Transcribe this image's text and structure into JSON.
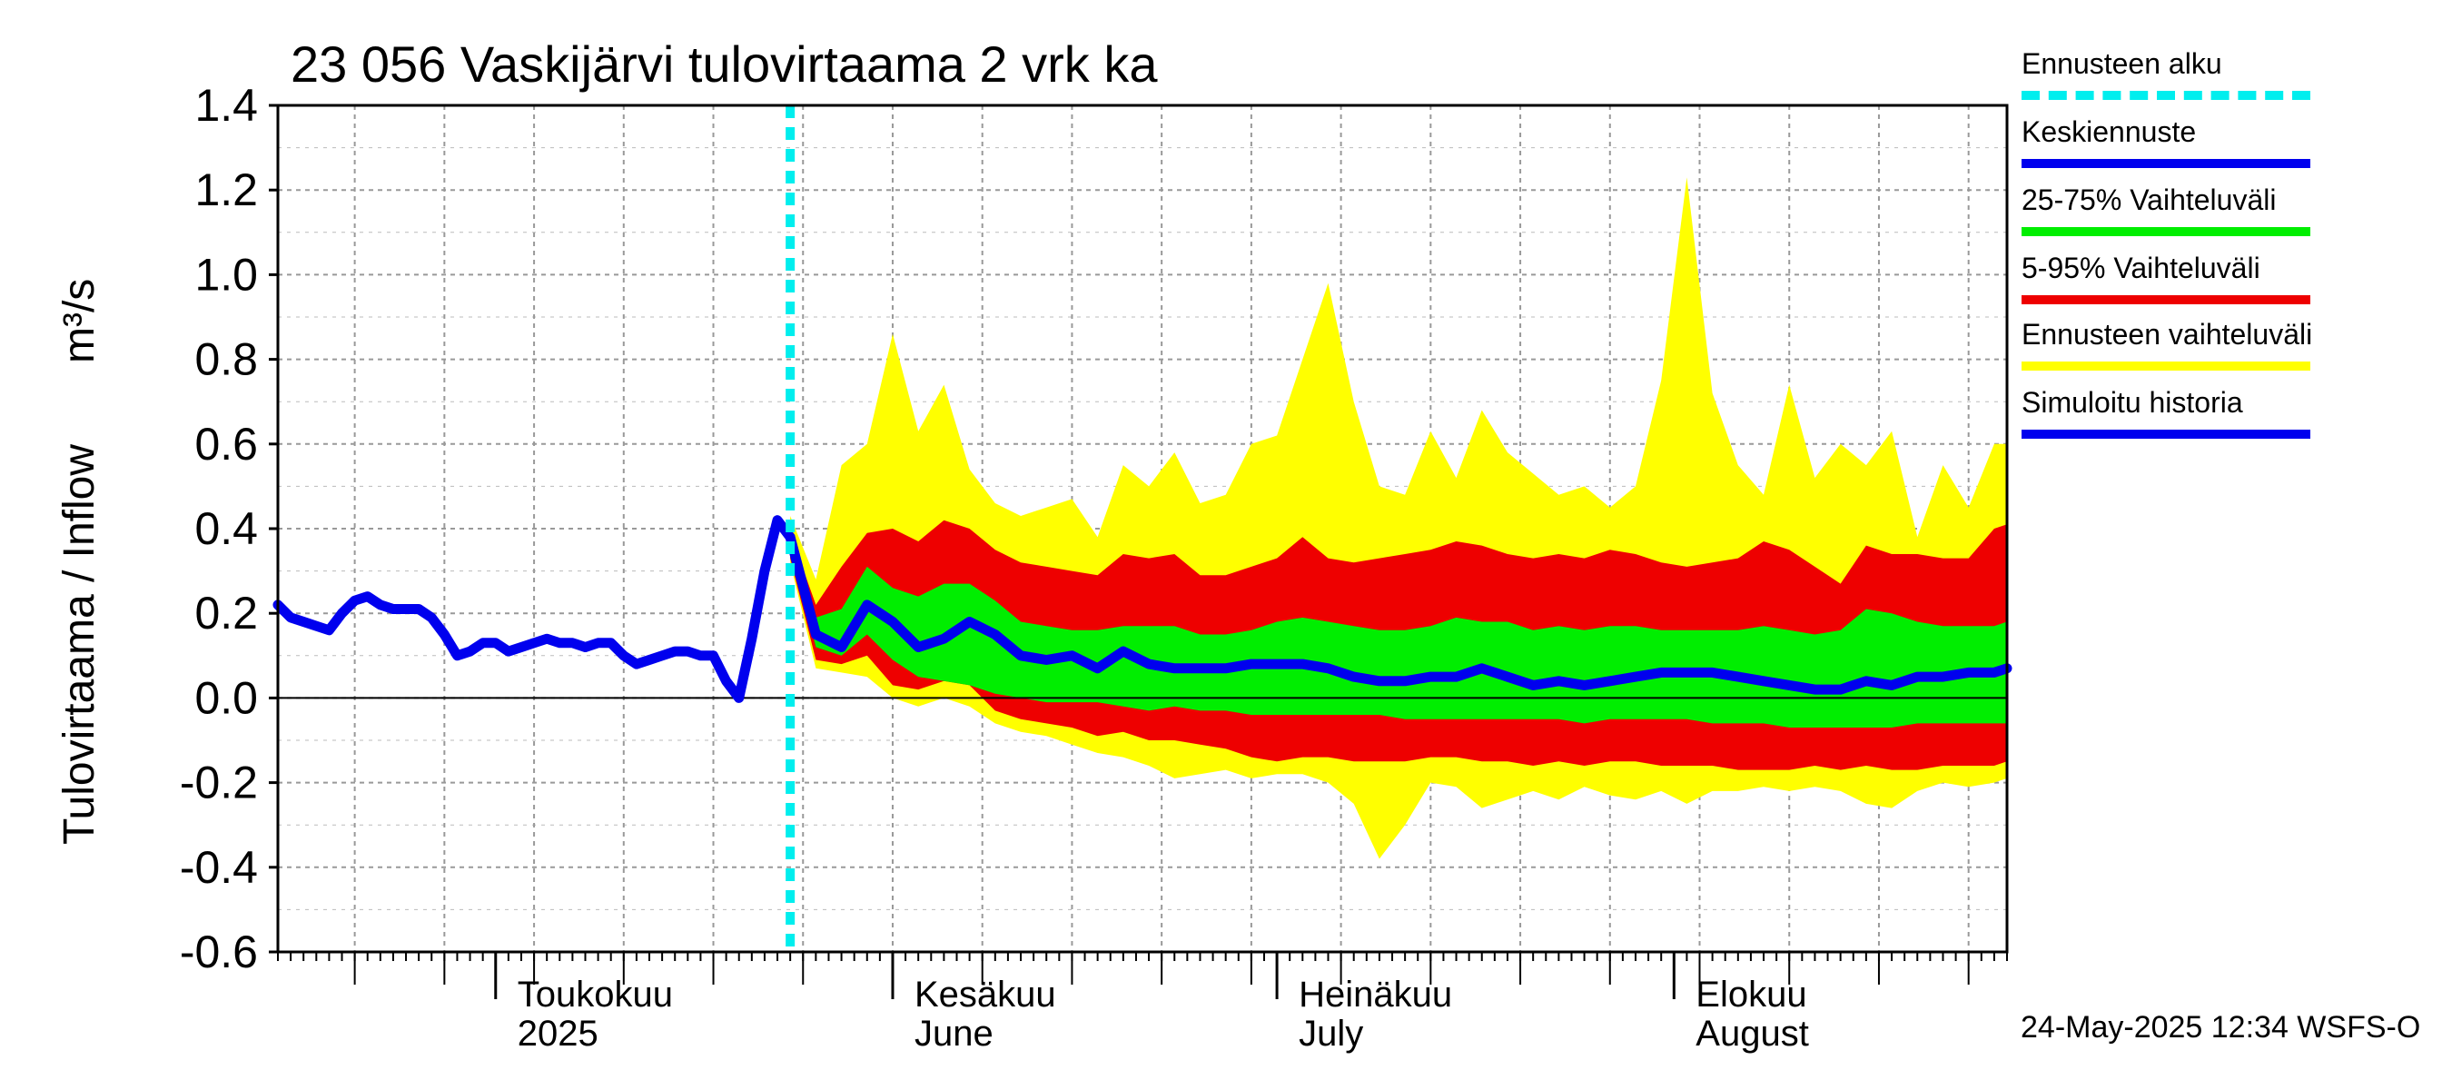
{
  "title": "23 056 Vaskijärvi tulovirtaama 2 vrk ka",
  "ylabel": "Tulovirtaama / Inflow",
  "yunit": "m³/s",
  "timestamp": "24-May-2025 12:34 WSFS-O",
  "colors": {
    "forecast_start": "#00eeee",
    "median": "#0000ee",
    "iqr": "#00ee00",
    "p5_95": "#ee0000",
    "range": "#ffff00",
    "history": "#0000ee"
  },
  "legend": [
    {
      "label": "Ennusteen alku",
      "color": "#00eeee",
      "style": "dashed"
    },
    {
      "label": "Keskiennuste",
      "color": "#0000ee",
      "style": "solid"
    },
    {
      "label": "25-75% Vaihteluväli",
      "color": "#00ee00",
      "style": "solid"
    },
    {
      "label": "5-95% Vaihteluväli",
      "color": "#ee0000",
      "style": "solid"
    },
    {
      "label": "Ennusteen vaihteluväli",
      "color": "#ffff00",
      "style": "solid"
    },
    {
      "label": "Simuloitu historia",
      "color": "#0000ee",
      "style": "solid"
    }
  ],
  "chart_data": {
    "type": "area",
    "title": "23 056 Vaskijärvi tulovirtaama 2 vrk ka",
    "ylabel": "Tulovirtaama / Inflow   m³/s",
    "ylim": [
      -0.6,
      1.4
    ],
    "yticks": [
      "1.4",
      "1.2",
      "1.0",
      "0.8",
      "0.6",
      "0.4",
      "0.2",
      "0.0",
      "-0.2",
      "-0.4",
      "-0.6"
    ],
    "xlim": [
      "2025-04-14",
      "2025-08-27"
    ],
    "grid": true,
    "legend_position": "right",
    "forecast_start": "2025-05-24",
    "month_ticks": [
      {
        "date": "2025-05-01",
        "label1": "Toukokuu",
        "label2": "2025"
      },
      {
        "date": "2025-06-01",
        "label1": "Kesäkuu",
        "label2": "June"
      },
      {
        "date": "2025-07-01",
        "label1": "Heinäkuu",
        "label2": "July"
      },
      {
        "date": "2025-08-01",
        "label1": "Elokuu",
        "label2": "August"
      }
    ],
    "history": {
      "name": "Simuloitu historia",
      "x": [
        "2025-04-14",
        "2025-04-15",
        "2025-04-16",
        "2025-04-17",
        "2025-04-18",
        "2025-04-19",
        "2025-04-20",
        "2025-04-21",
        "2025-04-22",
        "2025-04-23",
        "2025-04-24",
        "2025-04-25",
        "2025-04-26",
        "2025-04-27",
        "2025-04-28",
        "2025-04-29",
        "2025-04-30",
        "2025-05-01",
        "2025-05-02",
        "2025-05-03",
        "2025-05-04",
        "2025-05-05",
        "2025-05-06",
        "2025-05-07",
        "2025-05-08",
        "2025-05-09",
        "2025-05-10",
        "2025-05-11",
        "2025-05-12",
        "2025-05-13",
        "2025-05-14",
        "2025-05-15",
        "2025-05-16",
        "2025-05-17",
        "2025-05-18",
        "2025-05-19",
        "2025-05-20",
        "2025-05-21",
        "2025-05-22",
        "2025-05-23",
        "2025-05-24"
      ],
      "y": [
        0.22,
        0.19,
        0.18,
        0.17,
        0.16,
        0.2,
        0.23,
        0.24,
        0.22,
        0.21,
        0.21,
        0.21,
        0.19,
        0.15,
        0.1,
        0.11,
        0.13,
        0.13,
        0.11,
        0.12,
        0.13,
        0.14,
        0.13,
        0.13,
        0.12,
        0.13,
        0.13,
        0.1,
        0.08,
        0.09,
        0.1,
        0.11,
        0.11,
        0.1,
        0.1,
        0.04,
        0.0,
        0.14,
        0.3,
        0.42,
        0.38
      ]
    },
    "forecast": {
      "x": [
        "2025-05-24",
        "2025-05-26",
        "2025-05-28",
        "2025-05-30",
        "2025-06-01",
        "2025-06-03",
        "2025-06-05",
        "2025-06-07",
        "2025-06-09",
        "2025-06-11",
        "2025-06-13",
        "2025-06-15",
        "2025-06-17",
        "2025-06-19",
        "2025-06-21",
        "2025-06-23",
        "2025-06-25",
        "2025-06-27",
        "2025-06-29",
        "2025-07-01",
        "2025-07-03",
        "2025-07-05",
        "2025-07-07",
        "2025-07-09",
        "2025-07-11",
        "2025-07-13",
        "2025-07-15",
        "2025-07-17",
        "2025-07-19",
        "2025-07-21",
        "2025-07-23",
        "2025-07-25",
        "2025-07-27",
        "2025-07-29",
        "2025-07-31",
        "2025-08-02",
        "2025-08-04",
        "2025-08-06",
        "2025-08-08",
        "2025-08-10",
        "2025-08-12",
        "2025-08-14",
        "2025-08-16",
        "2025-08-18",
        "2025-08-20",
        "2025-08-22",
        "2025-08-24",
        "2025-08-26",
        "2025-08-27"
      ],
      "median": [
        0.38,
        0.15,
        0.12,
        0.22,
        0.18,
        0.12,
        0.14,
        0.18,
        0.15,
        0.1,
        0.09,
        0.1,
        0.07,
        0.11,
        0.08,
        0.07,
        0.07,
        0.07,
        0.08,
        0.08,
        0.08,
        0.07,
        0.05,
        0.04,
        0.04,
        0.05,
        0.05,
        0.07,
        0.05,
        0.03,
        0.04,
        0.03,
        0.04,
        0.05,
        0.06,
        0.06,
        0.06,
        0.05,
        0.04,
        0.03,
        0.02,
        0.02,
        0.04,
        0.03,
        0.05,
        0.05,
        0.06,
        0.06,
        0.07
      ],
      "p25": [
        0.36,
        0.12,
        0.1,
        0.15,
        0.09,
        0.05,
        0.04,
        0.03,
        0.01,
        0.0,
        -0.01,
        -0.01,
        -0.01,
        -0.02,
        -0.03,
        -0.02,
        -0.03,
        -0.03,
        -0.04,
        -0.04,
        -0.04,
        -0.04,
        -0.04,
        -0.04,
        -0.05,
        -0.05,
        -0.05,
        -0.05,
        -0.05,
        -0.05,
        -0.05,
        -0.06,
        -0.05,
        -0.05,
        -0.05,
        -0.05,
        -0.06,
        -0.06,
        -0.06,
        -0.07,
        -0.07,
        -0.07,
        -0.07,
        -0.07,
        -0.06,
        -0.06,
        -0.06,
        -0.06,
        -0.06
      ],
      "p75": [
        0.38,
        0.19,
        0.21,
        0.31,
        0.26,
        0.24,
        0.27,
        0.27,
        0.23,
        0.18,
        0.17,
        0.16,
        0.16,
        0.17,
        0.17,
        0.17,
        0.15,
        0.15,
        0.16,
        0.18,
        0.19,
        0.18,
        0.17,
        0.16,
        0.16,
        0.17,
        0.19,
        0.18,
        0.18,
        0.16,
        0.17,
        0.16,
        0.17,
        0.17,
        0.16,
        0.16,
        0.16,
        0.16,
        0.17,
        0.16,
        0.15,
        0.16,
        0.21,
        0.2,
        0.18,
        0.17,
        0.17,
        0.17,
        0.18
      ],
      "p5": [
        0.33,
        0.09,
        0.08,
        0.1,
        0.03,
        0.02,
        0.04,
        0.03,
        -0.03,
        -0.05,
        -0.06,
        -0.07,
        -0.09,
        -0.08,
        -0.1,
        -0.1,
        -0.11,
        -0.12,
        -0.14,
        -0.15,
        -0.14,
        -0.14,
        -0.15,
        -0.15,
        -0.15,
        -0.14,
        -0.14,
        -0.15,
        -0.15,
        -0.16,
        -0.15,
        -0.16,
        -0.15,
        -0.15,
        -0.16,
        -0.16,
        -0.16,
        -0.17,
        -0.17,
        -0.17,
        -0.16,
        -0.17,
        -0.16,
        -0.17,
        -0.17,
        -0.16,
        -0.16,
        -0.16,
        -0.15
      ],
      "p95": [
        0.39,
        0.22,
        0.31,
        0.39,
        0.4,
        0.37,
        0.42,
        0.4,
        0.35,
        0.32,
        0.31,
        0.3,
        0.29,
        0.34,
        0.33,
        0.34,
        0.29,
        0.29,
        0.31,
        0.33,
        0.38,
        0.33,
        0.32,
        0.33,
        0.34,
        0.35,
        0.37,
        0.36,
        0.34,
        0.33,
        0.34,
        0.33,
        0.35,
        0.34,
        0.32,
        0.31,
        0.32,
        0.33,
        0.37,
        0.35,
        0.31,
        0.27,
        0.36,
        0.34,
        0.34,
        0.33,
        0.33,
        0.4,
        0.41
      ],
      "min": [
        0.32,
        0.07,
        0.06,
        0.05,
        0.0,
        -0.02,
        0.0,
        -0.02,
        -0.06,
        -0.08,
        -0.09,
        -0.11,
        -0.13,
        -0.14,
        -0.16,
        -0.19,
        -0.18,
        -0.17,
        -0.19,
        -0.18,
        -0.18,
        -0.2,
        -0.25,
        -0.38,
        -0.3,
        -0.2,
        -0.21,
        -0.26,
        -0.24,
        -0.22,
        -0.24,
        -0.21,
        -0.23,
        -0.24,
        -0.22,
        -0.25,
        -0.22,
        -0.22,
        -0.21,
        -0.22,
        -0.21,
        -0.22,
        -0.25,
        -0.26,
        -0.22,
        -0.2,
        -0.21,
        -0.2,
        -0.19
      ],
      "max": [
        0.43,
        0.28,
        0.55,
        0.6,
        0.86,
        0.63,
        0.74,
        0.54,
        0.46,
        0.43,
        0.45,
        0.47,
        0.38,
        0.55,
        0.5,
        0.58,
        0.46,
        0.48,
        0.6,
        0.62,
        0.8,
        0.98,
        0.7,
        0.5,
        0.48,
        0.63,
        0.52,
        0.68,
        0.58,
        0.53,
        0.48,
        0.5,
        0.45,
        0.5,
        0.75,
        1.23,
        0.72,
        0.55,
        0.48,
        0.74,
        0.52,
        0.6,
        0.55,
        0.63,
        0.38,
        0.55,
        0.45,
        0.6,
        0.6
      ]
    }
  }
}
